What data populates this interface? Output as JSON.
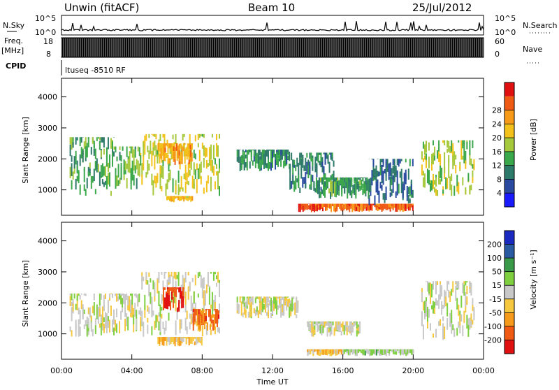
{
  "header": {
    "left": "Unwin (fitACF)",
    "center": "Beam 10",
    "right": "25/Jul/2012"
  },
  "top_labels": {
    "nsky": "N.Sky",
    "freq": "Freq.",
    "freq_unit": "[MHz]",
    "cpid": "CPID",
    "nsearch": "N.Search",
    "nave": "Nave",
    "cpid_value": "ltuseq -8510 RF",
    "nsky_ticks": [
      "10^5",
      "10^0"
    ],
    "nsearch_ticks": [
      "10^5",
      "10^0"
    ],
    "freq_ticks": [
      "18",
      "8"
    ],
    "nave_ticks": [
      "60",
      "0"
    ]
  },
  "x_axis": {
    "label": "Time UT",
    "ticks": [
      "00:00",
      "04:00",
      "08:00",
      "12:00",
      "16:00",
      "20:00",
      "00:00"
    ]
  },
  "panel_power": {
    "ylabel": "Slant Range [km]",
    "yticks": [
      "1000",
      "2000",
      "3000",
      "4000"
    ],
    "colorbar_label": "Power [dB]",
    "colorbar_ticks": [
      "4",
      "8",
      "12",
      "16",
      "20",
      "24",
      "28"
    ]
  },
  "panel_velocity": {
    "ylabel": "Slant Range [km]",
    "yticks": [
      "1000",
      "2000",
      "3000",
      "4000"
    ],
    "colorbar_label": "Velocity [m s⁻¹]",
    "colorbar_ticks": [
      "-200",
      "-100",
      "-50",
      "-15",
      "15",
      "50",
      "100",
      "200"
    ]
  },
  "colors": {
    "power_scale": [
      "#1a1aff",
      "#2a4aa0",
      "#2e7a6a",
      "#3aa84a",
      "#a6c83c",
      "#f2c21a",
      "#f79a18",
      "#ef5a14",
      "#e01010"
    ],
    "velocity_scale": [
      "#e01010",
      "#f05a14",
      "#f59a1a",
      "#f5c840",
      "#c8c8c8",
      "#7fd040",
      "#3a9a4a",
      "#2a5aa0",
      "#1a2ac0"
    ]
  },
  "chart_data": [
    {
      "type": "heatmap",
      "title": "Power",
      "xlabel": "Time UT",
      "ylabel": "Slant Range [km]",
      "xlim": [
        0,
        24
      ],
      "ylim": [
        180,
        4600
      ],
      "colorbar": {
        "label": "Power [dB]",
        "range": [
          0,
          32
        ]
      },
      "regions": [
        {
          "t": [
            0.5,
            3.0
          ],
          "r": [
            800,
            2700
          ],
          "v": 12
        },
        {
          "t": [
            3.0,
            4.5
          ],
          "r": [
            1000,
            2400
          ],
          "v": 14
        },
        {
          "t": [
            4.5,
            9.0
          ],
          "r": [
            800,
            2800
          ],
          "v": 17
        },
        {
          "t": [
            5.5,
            7.5
          ],
          "r": [
            1800,
            2500
          ],
          "v": 22
        },
        {
          "t": [
            6.0,
            7.5
          ],
          "r": [
            600,
            800
          ],
          "v": 20
        },
        {
          "t": [
            10.0,
            13.0
          ],
          "r": [
            1600,
            2300
          ],
          "v": 10
        },
        {
          "t": [
            13.0,
            15.5
          ],
          "r": [
            900,
            2200
          ],
          "v": 9
        },
        {
          "t": [
            14.5,
            17.5
          ],
          "r": [
            700,
            1400
          ],
          "v": 11
        },
        {
          "t": [
            13.5,
            20.0
          ],
          "r": [
            280,
            550
          ],
          "v": 26
        },
        {
          "t": [
            17.5,
            20.0
          ],
          "r": [
            500,
            2000
          ],
          "v": 8
        },
        {
          "t": [
            20.5,
            23.5
          ],
          "r": [
            800,
            2600
          ],
          "v": 16
        }
      ]
    },
    {
      "type": "heatmap",
      "title": "Velocity",
      "xlabel": "Time UT",
      "ylabel": "Slant Range [km]",
      "xlim": [
        0,
        24
      ],
      "ylim": [
        180,
        4600
      ],
      "colorbar": {
        "label": "Velocity [m s⁻¹]",
        "range": [
          -250,
          250
        ]
      },
      "regions": [
        {
          "t": [
            0.5,
            4.5
          ],
          "r": [
            900,
            2300
          ],
          "v": 0
        },
        {
          "t": [
            4.5,
            9.0
          ],
          "r": [
            900,
            3000
          ],
          "v": -5
        },
        {
          "t": [
            5.8,
            7.0
          ],
          "r": [
            1700,
            2500
          ],
          "v": -200
        },
        {
          "t": [
            7.5,
            9.0
          ],
          "r": [
            1100,
            1800
          ],
          "v": -150
        },
        {
          "t": [
            5.5,
            8.0
          ],
          "r": [
            600,
            900
          ],
          "v": -60
        },
        {
          "t": [
            10.0,
            13.5
          ],
          "r": [
            1500,
            2200
          ],
          "v": -5
        },
        {
          "t": [
            14.0,
            17.0
          ],
          "r": [
            900,
            1400
          ],
          "v": 0
        },
        {
          "t": [
            14.0,
            16.0
          ],
          "r": [
            280,
            500
          ],
          "v": -60
        },
        {
          "t": [
            16.0,
            20.0
          ],
          "r": [
            280,
            500
          ],
          "v": 30
        },
        {
          "t": [
            20.5,
            23.5
          ],
          "r": [
            800,
            2700
          ],
          "v": -5
        }
      ]
    }
  ]
}
